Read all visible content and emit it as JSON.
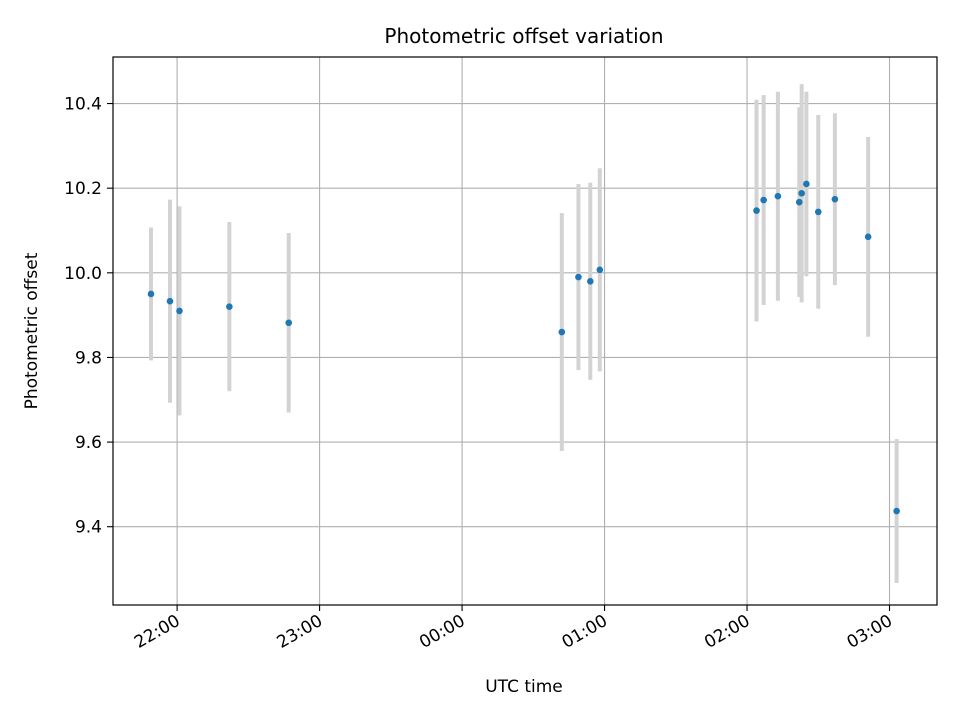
{
  "chart_data": {
    "type": "scatter",
    "title": "Photometric offset variation",
    "xlabel": "UTC time",
    "ylabel": "Photometric offset",
    "x_axis": {
      "type": "time",
      "start": "21:33",
      "end": "03:20",
      "ticks": [
        "22:00",
        "23:00",
        "00:00",
        "01:00",
        "02:00",
        "03:00"
      ]
    },
    "y_axis": {
      "ylim": [
        9.215,
        10.51
      ],
      "ticks": [
        9.4,
        9.6,
        9.8,
        10.0,
        10.2,
        10.4
      ]
    },
    "grid": true,
    "marker_color": "#1f77b4",
    "errorbar_color": "#d3d3d3",
    "series": [
      {
        "points": [
          {
            "time": "21:49",
            "y": 9.95,
            "err": 0.157
          },
          {
            "time": "21:57",
            "y": 9.933,
            "err": 0.24
          },
          {
            "time": "22:01",
            "y": 9.91,
            "err": 0.247
          },
          {
            "time": "22:22",
            "y": 9.92,
            "err": 0.2
          },
          {
            "time": "22:47",
            "y": 9.882,
            "err": 0.212
          },
          {
            "time": "00:42",
            "y": 9.86,
            "err": 0.281
          },
          {
            "time": "00:49",
            "y": 9.99,
            "err": 0.22
          },
          {
            "time": "00:54",
            "y": 9.98,
            "err": 0.233
          },
          {
            "time": "00:58",
            "y": 10.007,
            "err": 0.24
          },
          {
            "time": "02:04",
            "y": 10.147,
            "err": 0.262
          },
          {
            "time": "02:07",
            "y": 10.172,
            "err": 0.248
          },
          {
            "time": "02:13",
            "y": 10.181,
            "err": 0.247
          },
          {
            "time": "02:22",
            "y": 10.167,
            "err": 0.224
          },
          {
            "time": "02:23",
            "y": 10.188,
            "err": 0.258
          },
          {
            "time": "02:25",
            "y": 10.21,
            "err": 0.218
          },
          {
            "time": "02:30",
            "y": 10.144,
            "err": 0.229
          },
          {
            "time": "02:37",
            "y": 10.174,
            "err": 0.203
          },
          {
            "time": "02:51",
            "y": 10.085,
            "err": 0.236
          },
          {
            "time": "03:03",
            "y": 9.437,
            "err": 0.17
          }
        ]
      }
    ]
  }
}
